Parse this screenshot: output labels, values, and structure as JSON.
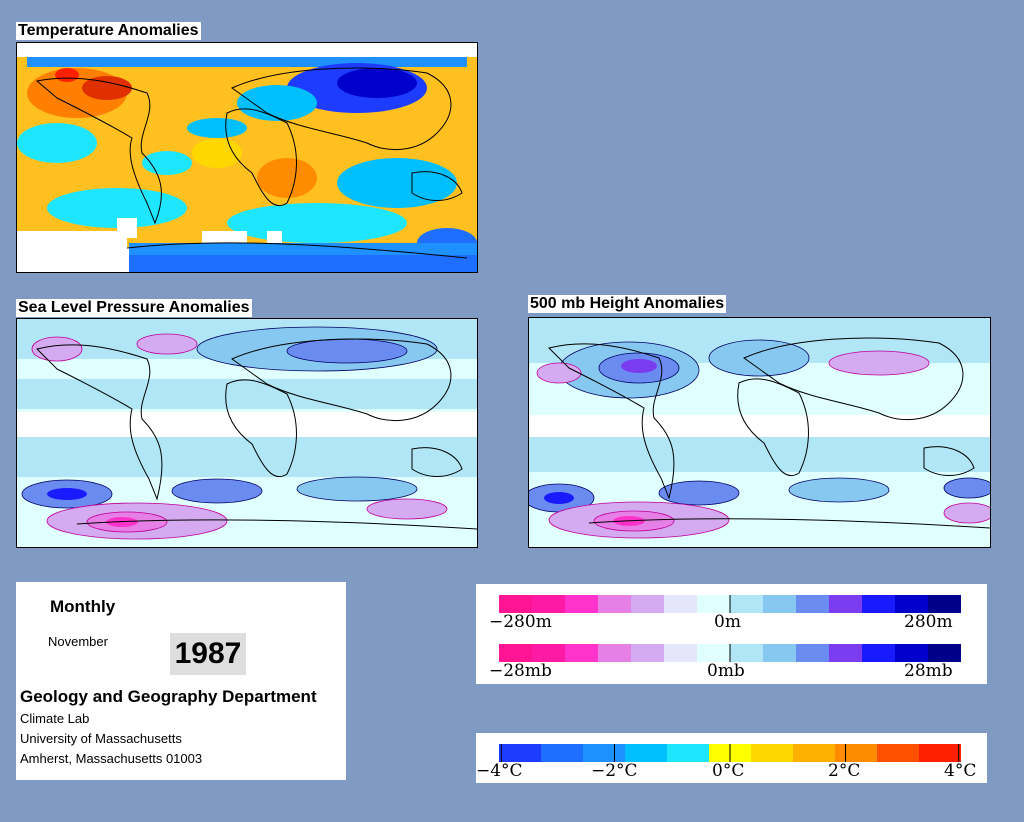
{
  "panels": {
    "temperature": {
      "title": "Temperature Anomalies"
    },
    "slp": {
      "title": "Sea Level Pressure Anomalies"
    },
    "height500": {
      "title": "500 mb Height Anomalies"
    }
  },
  "info": {
    "period": "Monthly",
    "month": "November",
    "year": "1987",
    "department": "Geology and Geography Department",
    "lines": [
      "Climate Lab",
      "University of Massachusetts",
      "Amherst, Massachusetts 01003"
    ]
  },
  "legends": {
    "height": {
      "min": "−280m",
      "mid": "0m",
      "max": "280m"
    },
    "pressure": {
      "min": "−28mb",
      "mid": "0mb",
      "max": "28mb"
    },
    "temperature": [
      "−4°C",
      "−2°C",
      "0°C",
      "2°C",
      "4°C"
    ]
  },
  "colors": {
    "background": "#7f9bc3",
    "pressure_scale": [
      "#ff1493",
      "#ff1aa6",
      "#ff33cc",
      "#e680e6",
      "#d4aaf0",
      "#e6e6fa",
      "#e0ffff",
      "#b0e6f5",
      "#87c8f0",
      "#6a8cf0",
      "#7b3cf0",
      "#1a1aff",
      "#0000cd",
      "#00008b"
    ],
    "temperature_scale": [
      "#1e3cff",
      "#1e6eff",
      "#1e90ff",
      "#00bfff",
      "#1ee6ff",
      "#ffff00",
      "#ffd700",
      "#ffb000",
      "#ff8c00",
      "#ff5000",
      "#ff2000"
    ]
  }
}
